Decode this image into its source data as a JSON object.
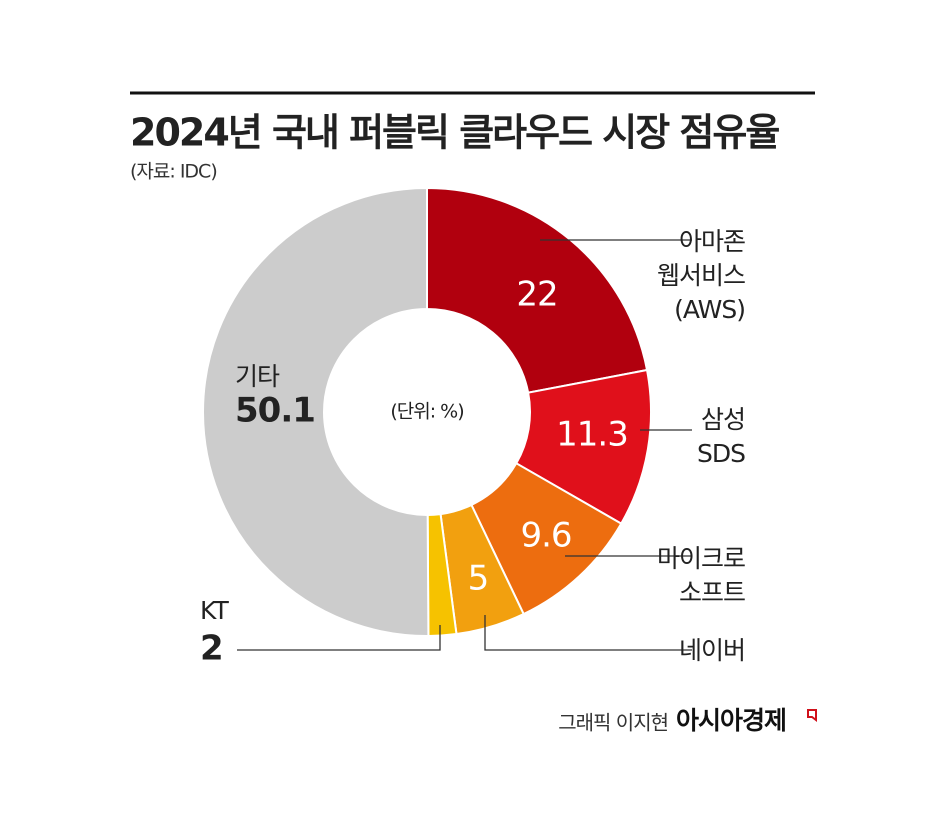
{
  "chart_data": {
    "type": "donut",
    "title": "2024년 국내 퍼블릭 클라우드 시장 점유율",
    "source": "(자료: IDC)",
    "unit_label": "(단위: %)",
    "categories": [
      "아마존\n웹서비스\n(AWS)",
      "삼성\nSDS",
      "마이크로\n소프트",
      "네이버",
      "KT",
      "기타"
    ],
    "values": [
      22,
      11.3,
      9.6,
      5,
      2,
      50.1
    ],
    "colors": [
      "#b1000e",
      "#e0101b",
      "#ed6d0f",
      "#f2a00f",
      "#f6c200",
      "#cccccc"
    ],
    "credit": "그래픽 이지현",
    "publisher": "아시아경제"
  }
}
